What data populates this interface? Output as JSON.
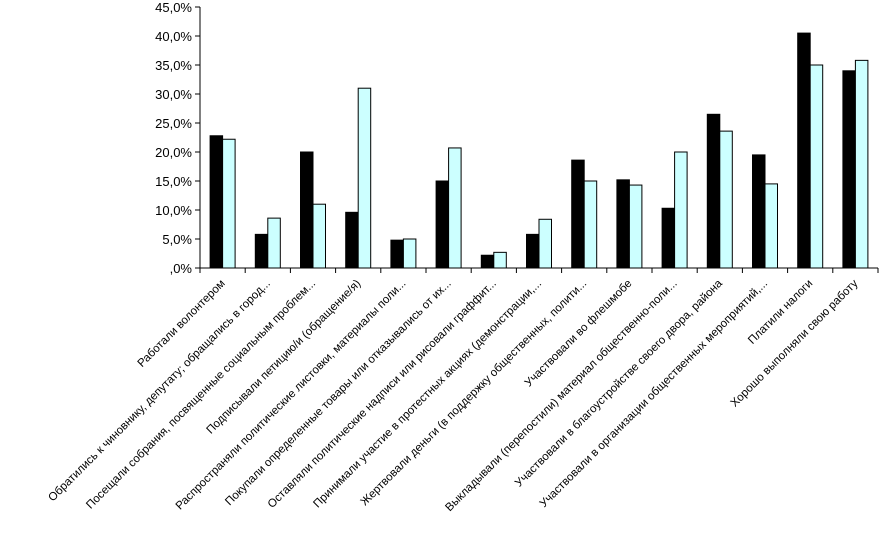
{
  "chart_data": {
    "type": "bar",
    "title": "",
    "xlabel": "",
    "ylabel": "",
    "ylim": [
      0,
      45
    ],
    "grid": false,
    "legend": "none",
    "y_ticks": [
      ",0%",
      "5,0%",
      "10,0%",
      "15,0%",
      "20,0%",
      "25,0%",
      "30,0%",
      "35,0%",
      "40,0%",
      "45,0%"
    ],
    "categories": [
      "Работали волонтером",
      "Обратились к чиновнику, депутату; обращались в город...",
      "Посещали собрания, посвященные социальным проблем...",
      "Подписывали петицию/и (обращение/я)",
      "Распространяли политические листовки, материалы поли...",
      "Покупали определенные товары или отказывались от их...",
      "Оставляли политические надписи или рисовали граффит...",
      "Принимали участие в протестных акциях (демонстрации,...",
      "Жертвовали деньги (в поддержку общественных, полити...",
      "Участвовали во флешмобе",
      "Выкладывали (перепостили) материал общественно-поли...",
      "Участвовали в благоустройстве своего двора, района",
      "Участвовали в организации общественных мероприятий,...",
      "Платили налоги",
      "Хорошо выполняли свою работу"
    ],
    "series": [
      {
        "values": [
          22.8,
          5.8,
          20.0,
          9.6,
          4.8,
          15.0,
          2.2,
          5.8,
          18.6,
          15.2,
          10.3,
          26.5,
          19.5,
          40.5,
          34.0
        ]
      },
      {
        "values": [
          22.2,
          8.6,
          11.0,
          31.0,
          5.0,
          20.7,
          2.7,
          8.4,
          15.0,
          14.3,
          20.0,
          23.6,
          14.5,
          35.0,
          35.8
        ]
      }
    ],
    "colors": {
      "series1": "#000000",
      "series2": "#ccffff",
      "axis": "#000000"
    }
  }
}
